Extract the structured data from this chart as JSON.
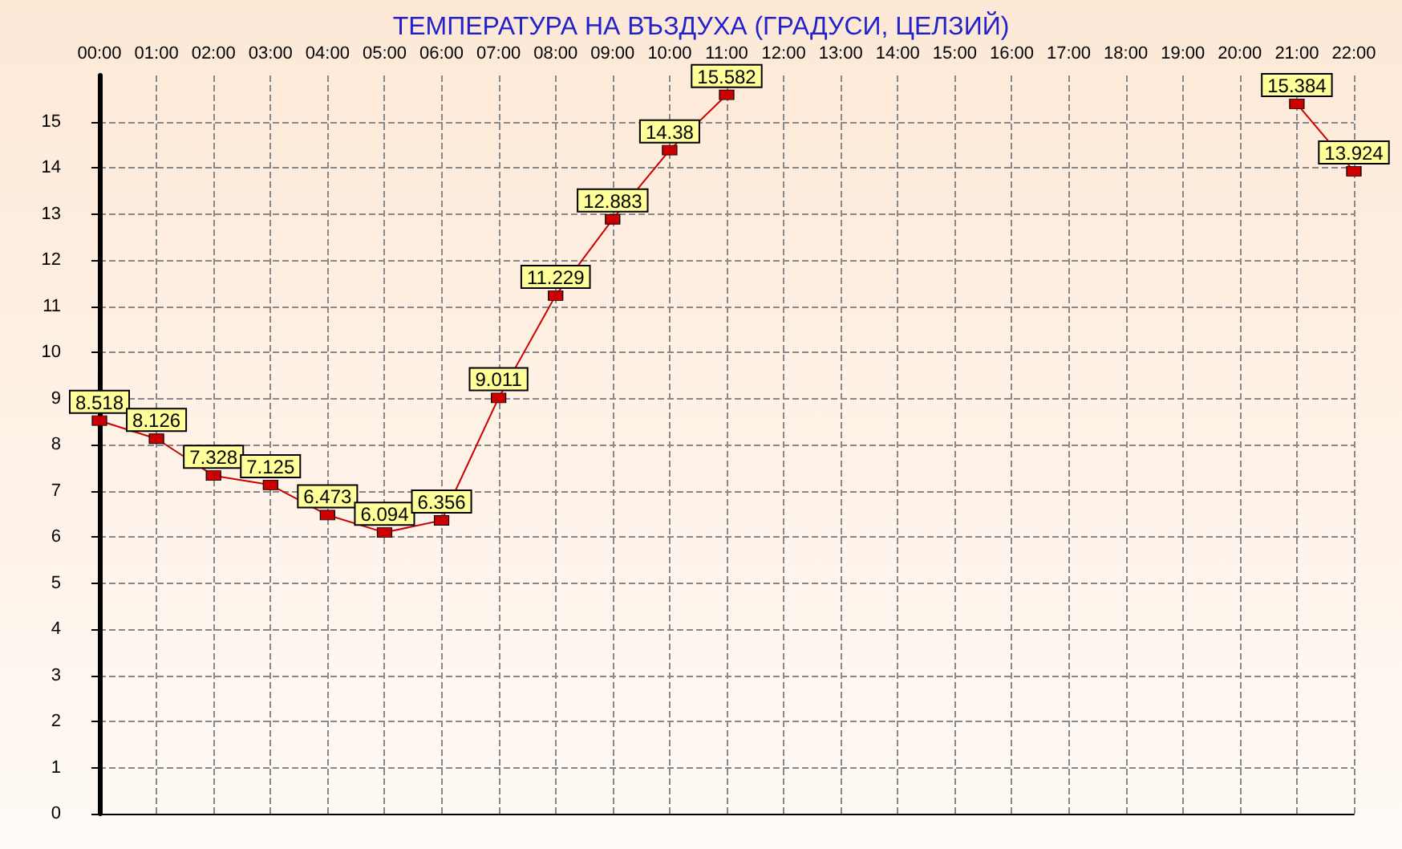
{
  "chart_data": {
    "type": "line",
    "title": "ТЕМПЕРАТУРА НА ВЪЗДУХА (ГРАДУСИ, ЦЕЛЗИЙ)",
    "categories": [
      "00:00",
      "01:00",
      "02:00",
      "03:00",
      "04:00",
      "05:00",
      "06:00",
      "07:00",
      "08:00",
      "09:00",
      "10:00",
      "11:00",
      "12:00",
      "13:00",
      "14:00",
      "15:00",
      "16:00",
      "17:00",
      "18:00",
      "19:00",
      "20:00",
      "21:00",
      "22:00"
    ],
    "series": [
      {
        "color": "#cc0000",
        "values": [
          8.518,
          8.126,
          7.328,
          7.125,
          6.473,
          6.094,
          6.356,
          9.011,
          11.229,
          12.883,
          14.38,
          15.582,
          null,
          null,
          null,
          null,
          null,
          null,
          null,
          null,
          null,
          15.384,
          13.924
        ]
      }
    ],
    "ylim": [
      0,
      16
    ],
    "yticks": [
      0,
      1,
      2,
      3,
      4,
      5,
      6,
      7,
      8,
      9,
      10,
      11,
      12,
      13,
      14,
      15
    ],
    "grid": true,
    "marker": "square",
    "line_style": "solid",
    "data_labels": true
  }
}
